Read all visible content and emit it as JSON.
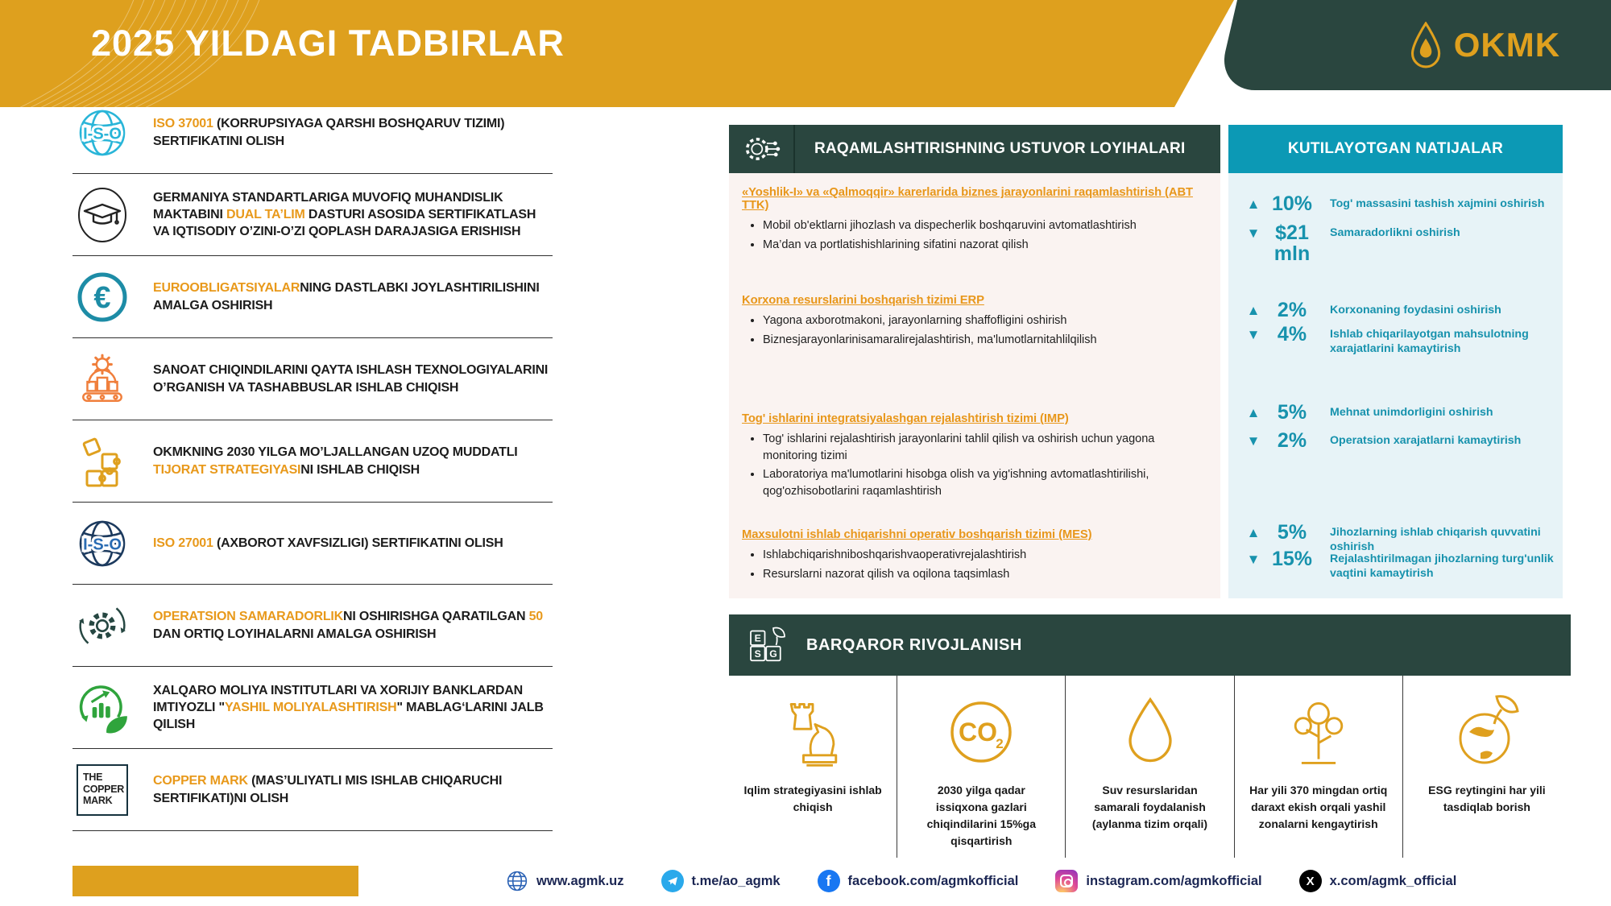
{
  "header": {
    "title": "2025 YILDAGI TADBIRLAR",
    "logo": "OKMK"
  },
  "left_items": [
    {
      "icon": "iso-globe-cyan",
      "parts": [
        {
          "t": "ISO 37001 ",
          "a": true
        },
        {
          "t": "(KORRUPSIYAGA QARSHI BOSHQARUV TIZIMI) SERTIFIKATINI OLISH",
          "a": false
        }
      ]
    },
    {
      "icon": "graduation-cap",
      "parts": [
        {
          "t": "GERMANIYA STANDARTLARIGA MUVOFIQ MUHANDISLIK MAKTABINI ",
          "a": false
        },
        {
          "t": "DUAL TA’LIM",
          "a": true
        },
        {
          "t": " DASTURI ASOSIDA SERTIFIKATLASH VA IQTISODIY O’ZINI-O’ZI QOPLASH DARAJASIGA ERISHISH",
          "a": false
        }
      ]
    },
    {
      "icon": "euro-circle",
      "parts": [
        {
          "t": "EUROOBLIGATSIYALAR",
          "a": true
        },
        {
          "t": "NING DASTLABKI JOYLASHTIRILISHINI AMALGA OSHIRISH",
          "a": false
        }
      ]
    },
    {
      "icon": "recycling-plant",
      "parts": [
        {
          "t": "SANOAT CHIQINDILARINI QAYTA ISHLASH TEXNOLOGIYALARINI O’RGANISH VA TASHABBUSLAR ISHLAB CHIQISH",
          "a": false
        }
      ]
    },
    {
      "icon": "puzzle",
      "parts": [
        {
          "t": "OKMKNING 2030 YILGA MO’LJALLANGAN UZOQ MUDDATLI ",
          "a": false
        },
        {
          "t": "TIJORAT STRATEGIYASI",
          "a": true
        },
        {
          "t": "NI ISHLAB CHIQISH",
          "a": false
        }
      ]
    },
    {
      "icon": "iso-globe-blue",
      "parts": [
        {
          "t": "ISO 27001 ",
          "a": true
        },
        {
          "t": "(AXBOROT XAVFSIZLIGI) SERTIFIKATINI OLISH",
          "a": false
        }
      ]
    },
    {
      "icon": "gear-cycle",
      "parts": [
        {
          "t": "OPERATSION SAMARADORLIK",
          "a": true
        },
        {
          "t": "NI OSHIRISHGA QARATILGAN ",
          "a": false
        },
        {
          "t": "50",
          "a": true
        },
        {
          "t": " DAN ORTIQ LOYIHALARNI AMALGA OSHIRISH",
          "a": false
        }
      ]
    },
    {
      "icon": "green-finance",
      "parts": [
        {
          "t": "XALQARO MOLIYA INSTITUTLARI VA XORIJIY BANKLARDAN IMTIYOZLI \"",
          "a": false
        },
        {
          "t": "YASHIL MOLIYALASHTIRISH",
          "a": true
        },
        {
          "t": "\" MABLAG‘LARINI JALB QILISH",
          "a": false
        }
      ]
    },
    {
      "icon": "copper-mark-logo",
      "logo_lines": [
        "THE",
        "COPPER",
        "MARK"
      ],
      "parts": [
        {
          "t": "COPPER MARK ",
          "a": true
        },
        {
          "t": "(MAS’ULIYATLI MIS ISHLAB CHIQARUCHI SERTIFIKATI)NI OLISH",
          "a": false
        }
      ]
    }
  ],
  "digital": {
    "header": "RAQAMLASHTIRISHNING USTUVOR LOYIHALARI",
    "sections": [
      {
        "heading": "«Yoshlik-I» va «Qalmoqqir» karerlarida biznes jarayonlarini raqamlashtirish (ABT TTK)",
        "bullets": [
          "Mobil ob'ektlarni jihozlash va dispecherlik boshqaruvini avtomatlashtirish",
          "Ma’dan va portlatishishlarining sifatini nazorat qilish"
        ]
      },
      {
        "heading": "Korxona resurslarini boshqarish tizimi ERP",
        "bullets": [
          "Yagona axborotmakoni, jarayonlarning shaffofligini oshirish",
          "Biznesjarayonlarinisamaralirejalashtirish, ma'lumotlarnitahlilqilish"
        ]
      },
      {
        "heading": "Tog' ishlarini integratsiyalashgan rejalashtirish tizimi (IMP)",
        "bullets": [
          "Tog' ishlarini rejalashtirish jarayonlarini tahlil qilish va oshirish uchun yagona monitoring tizimi",
          "Laboratoriya ma'lumotlarini hisobga olish va yig'ishning avtomatlashtirilishi, qog'ozhisobotlarini raqamlashtirish"
        ]
      },
      {
        "heading": "Maxsulotni ishlab chiqarishni operativ boshqarish tizimi (MES)",
        "bullets": [
          "Ishlabchiqarishniboshqarishvaoperativrejalashtirish",
          "Resurslarni nazorat qilish va oqilona taqsimlash"
        ]
      }
    ]
  },
  "results": {
    "header": "KUTILAYOTGAN NATIJALAR",
    "rows": [
      {
        "arrow": "▲",
        "dir": "up",
        "value": "10%",
        "label": "Tog' massasini tashish xajmini oshirish"
      },
      {
        "arrow": "▼",
        "dir": "down",
        "value": "$21 mln",
        "label": "Samaradorlikni oshirish"
      },
      {
        "arrow": "▲",
        "dir": "up",
        "value": "2%",
        "label": "Korxonaning foydasini oshirish"
      },
      {
        "arrow": "▼",
        "dir": "down",
        "value": "4%",
        "label": "Ishlab chiqarilayotgan mahsulotning xarajatlarini kamaytirish"
      },
      {
        "arrow": "▲",
        "dir": "up",
        "value": "5%",
        "label": "Mehnat unimdorligini oshirish"
      },
      {
        "arrow": "▼",
        "dir": "down",
        "value": "2%",
        "label": "Operatsion xarajatlarni kamaytirish"
      },
      {
        "arrow": "▲",
        "dir": "up",
        "value": "5%",
        "label": "Jihozlarning ishlab chiqarish quvvatini oshirish"
      },
      {
        "arrow": "▼",
        "dir": "down",
        "value": "15%",
        "label": "Rejalashtirilmagan jihozlarning turg'unlik vaqtini kamaytirish"
      }
    ]
  },
  "sustain": {
    "header": "BARQAROR RIVOJLANISH",
    "cols": [
      {
        "icon": "chess-strategy",
        "caption": "Iqlim strategiyasini ishlab chiqish"
      },
      {
        "icon": "co2-circle",
        "caption": "2030 yilga qadar issiqxona gazlari chiqindilarini 15%ga qisqartirish"
      },
      {
        "icon": "water-drop",
        "caption": "Suv resurslaridan samarali foydalanish (aylanma tizim orqali)"
      },
      {
        "icon": "tree",
        "caption": "Har yili 370 mingdan ortiq daraxt ekish orqali yashil zonalarni kengaytirish"
      },
      {
        "icon": "globe-leaf",
        "caption": "ESG reytingini har yili tasdiqlab borish"
      }
    ]
  },
  "footer": {
    "links": [
      {
        "icon": "globe-icon",
        "label": "www.agmk.uz"
      },
      {
        "icon": "telegram-icon",
        "label": "t.me/ao_agmk"
      },
      {
        "icon": "facebook-icon",
        "label": "facebook.com/agmkofficial"
      },
      {
        "icon": "instagram-icon",
        "label": "instagram.com/agmkofficial"
      },
      {
        "icon": "x-icon",
        "label": "x.com/agmk_official"
      }
    ]
  },
  "colors": {
    "accent_orange": "#DEA01E",
    "dark_green": "#2A463F",
    "teal": "#0C99B5",
    "teal_text": "#1792AD"
  }
}
